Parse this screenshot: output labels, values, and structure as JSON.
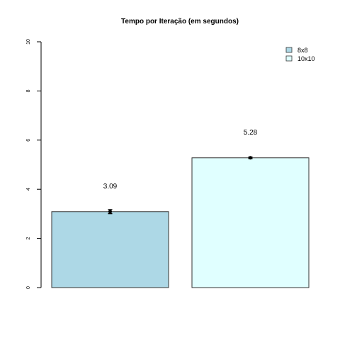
{
  "chart_data": {
    "type": "bar",
    "title": "Tempo por Iteração (em segundos)",
    "xlabel": "",
    "ylabel": "",
    "categories": [
      "8x8",
      "10x10"
    ],
    "values": [
      3.09,
      5.28
    ],
    "value_labels": [
      "3.09",
      "5.28"
    ],
    "error": [
      0.08,
      0.03
    ],
    "ylim": [
      0,
      10
    ],
    "yticks": [
      0,
      2,
      4,
      6,
      8,
      10
    ],
    "colors": [
      "#add8e6",
      "#e0ffff"
    ],
    "legend": {
      "position": "top-right",
      "entries": [
        "8x8",
        "10x10"
      ]
    },
    "grid": false
  }
}
